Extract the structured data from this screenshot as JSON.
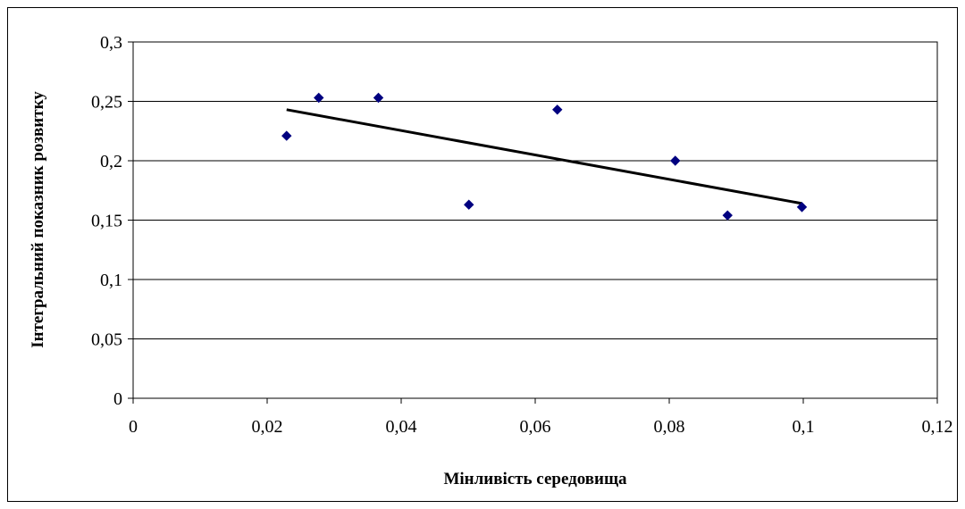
{
  "chart_data": {
    "type": "scatter",
    "title": "",
    "xlabel": "Мінливість середовища",
    "ylabel": "Інтегральний показник розвитку",
    "xlim": [
      0,
      0.12
    ],
    "ylim": [
      0,
      0.3
    ],
    "x_ticks": [
      0,
      0.02,
      0.04,
      0.06,
      0.08,
      0.1,
      0.12
    ],
    "y_ticks": [
      0,
      0.05,
      0.1,
      0.15,
      0.2,
      0.25,
      0.3
    ],
    "x_tick_labels": [
      "0",
      "0,02",
      "0,04",
      "0,06",
      "0,08",
      "0,1",
      "0,12"
    ],
    "y_tick_labels": [
      "0",
      "0,05",
      "0,1",
      "0,15",
      "0,2",
      "0,25",
      "0,3"
    ],
    "grid": "horizontal",
    "legend": "none",
    "series": [
      {
        "x": [
          0.0229,
          0.0277,
          0.0366,
          0.0501,
          0.0633,
          0.0809,
          0.0887,
          0.0998
        ],
        "y": [
          0.221,
          0.253,
          0.253,
          0.163,
          0.243,
          0.2,
          0.154,
          0.161
        ],
        "color": "#000080",
        "marker": "diamond"
      }
    ],
    "trendline": {
      "type": "linear",
      "x": [
        0.0229,
        0.0998
      ],
      "y": [
        0.243,
        0.164
      ],
      "color": "#000000"
    }
  }
}
